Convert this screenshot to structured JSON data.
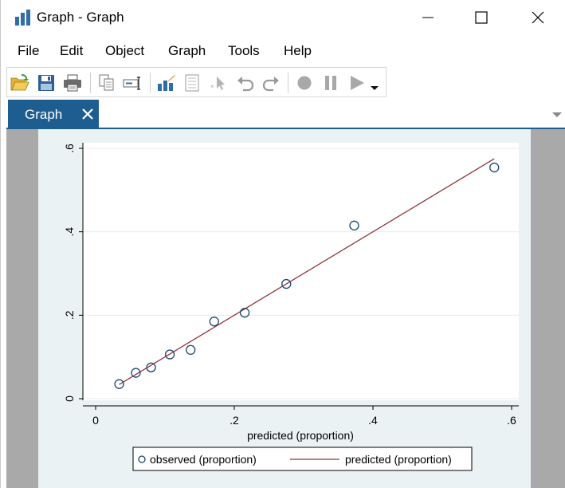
{
  "window": {
    "title": "Graph - Graph",
    "icon": "bar-chart-icon",
    "controls": {
      "minimize": "minimize-icon",
      "maximize": "maximize-icon",
      "close": "close-icon"
    }
  },
  "menu": {
    "items": [
      "File",
      "Edit",
      "Object",
      "Graph",
      "Tools",
      "Help"
    ]
  },
  "toolbar": {
    "buttons": [
      "open-icon",
      "save-icon",
      "print-icon",
      "copy-icon",
      "rename-icon",
      "graph-editor-icon",
      "data-editor-icon",
      "pointer-icon",
      "undo-icon",
      "redo-icon",
      "record-icon",
      "pause-icon",
      "play-icon",
      "dropdown-icon"
    ]
  },
  "tabs": [
    {
      "label": "Graph",
      "active": true
    }
  ],
  "colors": {
    "tab_active": "#1e5d8f",
    "plot_background": "#ffffff",
    "graph_background": "#eaf2f3",
    "canvas_background": "#a9a9a9",
    "marker_color": "#1a476f",
    "line_color": "#90353b"
  },
  "chart_data": {
    "type": "scatter",
    "xlabel": "predicted (proportion)",
    "ylabel": "",
    "xlim": [
      0,
      0.6
    ],
    "ylim": [
      0,
      0.6
    ],
    "xticks": [
      {
        "value": 0,
        "label": "0"
      },
      {
        "value": 0.2,
        "label": ".2"
      },
      {
        "value": 0.4,
        "label": ".4"
      },
      {
        "value": 0.6,
        "label": ".6"
      }
    ],
    "yticks": [
      {
        "value": 0,
        "label": "0"
      },
      {
        "value": 0.2,
        "label": ".2"
      },
      {
        "value": 0.4,
        "label": ".4"
      },
      {
        "value": 0.6,
        "label": ".6"
      }
    ],
    "grid": "horizontal",
    "legend_position": "bottom",
    "series": [
      {
        "name": "observed (proportion)",
        "kind": "scatter",
        "marker": "hollow-circle",
        "x": [
          0.034,
          0.058,
          0.08,
          0.107,
          0.137,
          0.171,
          0.215,
          0.275,
          0.373,
          0.575
        ],
        "y": [
          0.035,
          0.062,
          0.075,
          0.106,
          0.117,
          0.185,
          0.206,
          0.275,
          0.415,
          0.554
        ]
      },
      {
        "name": "predicted (proportion)",
        "kind": "line",
        "x": [
          0.034,
          0.575
        ],
        "y": [
          0.034,
          0.575
        ]
      }
    ]
  }
}
